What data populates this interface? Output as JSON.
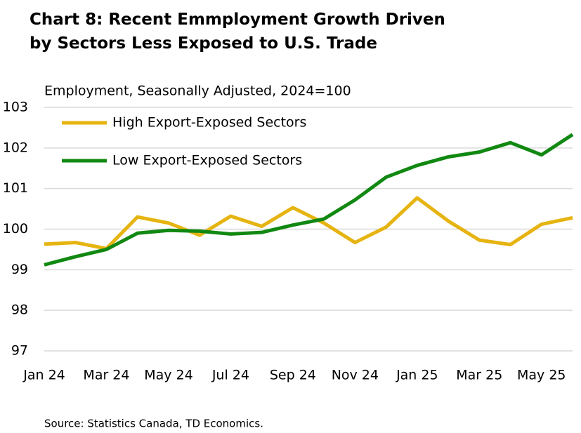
{
  "chart_data": {
    "type": "line",
    "title": [
      "Chart 8: Recent Emmployment Growth Driven",
      "by Sectors Less Exposed to U.S. Trade"
    ],
    "subtitle": "Employment, Seasonally Adjusted, 2024=100",
    "source": "Source: Statistics Canada, TD Economics.",
    "categories": [
      "Jan 24",
      null,
      "Mar 24",
      null,
      "May 24",
      null,
      "Jul 24",
      null,
      "Sep 24",
      null,
      "Nov 24",
      null,
      "Jan 25",
      null,
      "Mar 25",
      null,
      "May 25",
      null
    ],
    "series": [
      {
        "name": "High Export-Exposed Sectors",
        "color": "#e6b411",
        "values": [
          99.63,
          99.67,
          99.52,
          100.3,
          100.15,
          99.85,
          100.32,
          100.07,
          100.53,
          100.15,
          99.67,
          100.05,
          100.77,
          100.2,
          99.73,
          99.62,
          100.12,
          100.28
        ]
      },
      {
        "name": "Low Export-Exposed Sectors",
        "color": "#118811",
        "values": [
          99.12,
          99.32,
          99.5,
          99.9,
          99.97,
          99.95,
          99.88,
          99.92,
          100.1,
          100.25,
          100.72,
          101.28,
          101.57,
          101.78,
          101.9,
          102.13,
          101.83,
          102.33
        ]
      }
    ],
    "ylim": [
      97,
      103
    ],
    "yticks": [
      97,
      98,
      99,
      100,
      101,
      102,
      103
    ],
    "grid": true
  }
}
